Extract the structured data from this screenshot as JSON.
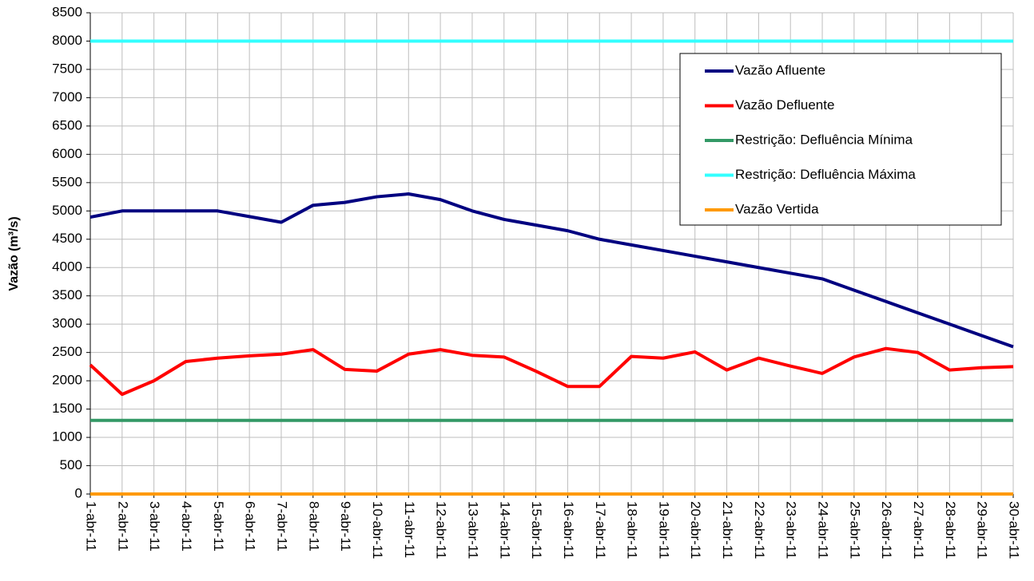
{
  "chart_data": {
    "type": "line",
    "y_label": "Vazão (m³/s)",
    "categories": [
      "1-abr-11",
      "2-abr-11",
      "3-abr-11",
      "4-abr-11",
      "5-abr-11",
      "6-abr-11",
      "7-abr-11",
      "8-abr-11",
      "9-abr-11",
      "10-abr-11",
      "11-abr-11",
      "12-abr-11",
      "13-abr-11",
      "14-abr-11",
      "15-abr-11",
      "16-abr-11",
      "17-abr-11",
      "18-abr-11",
      "19-abr-11",
      "20-abr-11",
      "21-abr-11",
      "22-abr-11",
      "23-abr-11",
      "24-abr-11",
      "25-abr-11",
      "26-abr-11",
      "27-abr-11",
      "28-abr-11",
      "29-abr-11",
      "30-abr-11"
    ],
    "series": [
      {
        "name": "Vazão Afluente",
        "color": "#000080",
        "values": [
          4890,
          5000,
          5000,
          5000,
          5000,
          4900,
          4800,
          5100,
          5150,
          5250,
          5300,
          5200,
          5000,
          4850,
          4750,
          4650,
          4500,
          4400,
          4300,
          4200,
          4100,
          4000,
          3900,
          3800,
          3600,
          3400,
          3200,
          3000,
          2800,
          2600
        ]
      },
      {
        "name": "Vazão Defluente",
        "color": "#ff0000",
        "values": [
          2280,
          1760,
          2000,
          2340,
          2400,
          2440,
          2470,
          2550,
          2200,
          2170,
          2470,
          2550,
          2450,
          2420,
          2170,
          1900,
          1900,
          2430,
          2400,
          2510,
          2190,
          2400,
          2260,
          2130,
          2420,
          2570,
          2500,
          2190,
          2230,
          2250
        ]
      },
      {
        "name": "Restrição: Defluência Mínima",
        "color": "#339966",
        "values": [
          1300,
          1300,
          1300,
          1300,
          1300,
          1300,
          1300,
          1300,
          1300,
          1300,
          1300,
          1300,
          1300,
          1300,
          1300,
          1300,
          1300,
          1300,
          1300,
          1300,
          1300,
          1300,
          1300,
          1300,
          1300,
          1300,
          1300,
          1300,
          1300,
          1300
        ]
      },
      {
        "name": "Restrição: Defluência Máxima",
        "color": "#33ffff",
        "values": [
          8000,
          8000,
          8000,
          8000,
          8000,
          8000,
          8000,
          8000,
          8000,
          8000,
          8000,
          8000,
          8000,
          8000,
          8000,
          8000,
          8000,
          8000,
          8000,
          8000,
          8000,
          8000,
          8000,
          8000,
          8000,
          8000,
          8000,
          8000,
          8000,
          8000
        ]
      },
      {
        "name": "Vazão Vertida",
        "color": "#ff9900",
        "values": [
          0,
          0,
          0,
          0,
          0,
          0,
          0,
          0,
          0,
          0,
          0,
          0,
          0,
          0,
          0,
          0,
          0,
          0,
          0,
          0,
          0,
          0,
          0,
          0,
          0,
          0,
          0,
          0,
          0,
          0
        ]
      }
    ],
    "ylim": [
      0,
      8500
    ],
    "yticks": [
      0,
      500,
      1000,
      1500,
      2000,
      2500,
      3000,
      3500,
      4000,
      4500,
      5000,
      5500,
      6000,
      6500,
      7000,
      7500,
      8000,
      8500
    ],
    "grid": true
  }
}
